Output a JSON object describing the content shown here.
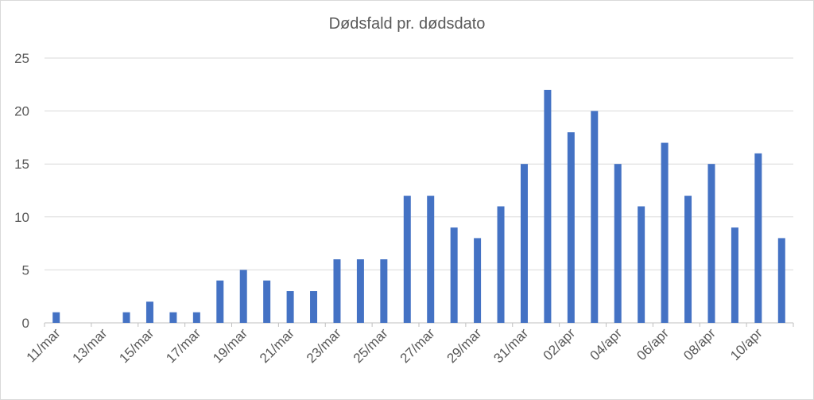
{
  "chart_data": {
    "type": "bar",
    "title": "Dødsfald pr. dødsdato",
    "xlabel": "",
    "ylabel": "",
    "categories": [
      "11/mar",
      "12/mar",
      "13/mar",
      "14/mar",
      "15/mar",
      "16/mar",
      "17/mar",
      "18/mar",
      "19/mar",
      "20/mar",
      "21/mar",
      "22/mar",
      "23/mar",
      "24/mar",
      "25/mar",
      "26/mar",
      "27/mar",
      "28/mar",
      "29/mar",
      "30/mar",
      "31/mar",
      "01/apr",
      "02/apr",
      "03/apr",
      "04/apr",
      "05/apr",
      "06/apr",
      "07/apr",
      "08/apr",
      "09/apr",
      "10/apr",
      "11/apr"
    ],
    "x_tick_labels": [
      "11/mar",
      "13/mar",
      "15/mar",
      "17/mar",
      "19/mar",
      "21/mar",
      "23/mar",
      "25/mar",
      "27/mar",
      "29/mar",
      "31/mar",
      "02/apr",
      "04/apr",
      "06/apr",
      "08/apr",
      "10/apr"
    ],
    "values": [
      1,
      0,
      0,
      1,
      2,
      1,
      1,
      4,
      5,
      4,
      3,
      3,
      6,
      6,
      6,
      12,
      12,
      9,
      8,
      11,
      15,
      22,
      18,
      20,
      15,
      11,
      17,
      12,
      15,
      9,
      16,
      8
    ],
    "ylim": [
      0,
      25
    ],
    "y_ticks": [
      0,
      5,
      10,
      15,
      20,
      25
    ],
    "grid": true,
    "legend": "none",
    "bar_color": "#4472C4"
  }
}
